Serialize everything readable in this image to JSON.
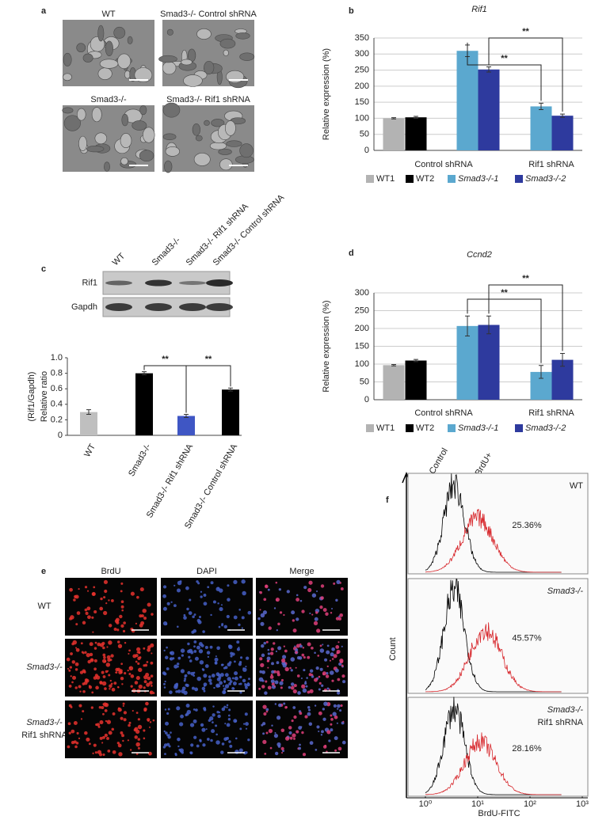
{
  "panel_letters": [
    "a",
    "b",
    "c",
    "d",
    "e",
    "f"
  ],
  "micrographs": {
    "labels": [
      "WT",
      "Smad3-/- Control shRNA",
      "Smad3-/-",
      "Smad3-/- Rif1 shRNA"
    ]
  },
  "chart_data": [
    {
      "type": "bar",
      "title": "Rif1",
      "ylabel": "Relative expression (%)",
      "categories": [
        "Control shRNA",
        "Rif1 shRNA"
      ],
      "series": [
        {
          "name": "WT1",
          "color": "#b3b3b3",
          "values": [
            100,
            null
          ],
          "errors": [
            2,
            null
          ]
        },
        {
          "name": "WT2",
          "color": "#000000",
          "values": [
            103,
            null
          ],
          "errors": [
            3,
            null
          ]
        },
        {
          "name": "Smad3-/-1",
          "color": "#5ba8cf",
          "values": [
            310,
            137
          ],
          "errors": [
            18,
            10
          ]
        },
        {
          "name": "Smad3-/-2",
          "color": "#2e3a9e",
          "values": [
            252,
            108
          ],
          "errors": [
            8,
            5
          ]
        }
      ],
      "ylim": [
        0,
        350
      ],
      "yticks": [
        0,
        50,
        100,
        150,
        200,
        250,
        300,
        350
      ],
      "grid": true,
      "annotations": [
        "**",
        "**"
      ]
    },
    {
      "type": "bar",
      "ylabel": [
        "(Rif1/Gapdh)",
        "Relative ratio"
      ],
      "categories": [
        "WT",
        "Smad3-/-",
        "Smad3-/- Rif1 shRNA",
        "Smad3-/- Control shRNA"
      ],
      "values": [
        0.3,
        0.8,
        0.25,
        0.59
      ],
      "errors": [
        0.03,
        0.02,
        0.02,
        0.02
      ],
      "colors": [
        "#bfbfbf",
        "#000000",
        "#3f56c4",
        "#000000"
      ],
      "ylim": [
        0,
        1
      ],
      "yticks": [
        0,
        0.2,
        0.4,
        0.6,
        0.8,
        {
          "value": 1,
          "label": "1.0"
        }
      ],
      "grid": false,
      "annotations": [
        "**",
        "**"
      ]
    },
    {
      "type": "bar",
      "title": "Ccnd2",
      "ylabel": "Relative expression (%)",
      "categories": [
        "Control shRNA",
        "Rif1 shRNA"
      ],
      "series": [
        {
          "name": "WT1",
          "color": "#b3b3b3",
          "values": [
            97,
            null
          ],
          "errors": [
            2,
            null
          ]
        },
        {
          "name": "WT2",
          "color": "#000000",
          "values": [
            110,
            null
          ],
          "errors": [
            3,
            null
          ]
        },
        {
          "name": "Smad3-/-1",
          "color": "#5ba8cf",
          "values": [
            207,
            78
          ],
          "errors": [
            28,
            18
          ]
        },
        {
          "name": "Smad3-/-2",
          "color": "#2e3a9e",
          "values": [
            210,
            112
          ],
          "errors": [
            25,
            18
          ]
        }
      ],
      "ylim": [
        0,
        300
      ],
      "yticks": [
        0,
        50,
        100,
        150,
        200,
        250,
        300
      ],
      "grid": true,
      "annotations": [
        "**",
        "**"
      ]
    }
  ],
  "blot": {
    "rows": [
      "Rif1",
      "Gapdh"
    ]
  },
  "brdu_images": {
    "columns": [
      "BrdU",
      "DAPI",
      "Merge"
    ],
    "rows": [
      [
        "WT"
      ],
      [
        "Smad3-/-"
      ],
      [
        "Smad3-/-",
        "Rif1 shRNA"
      ]
    ]
  },
  "flow": {
    "xlabel": "BrdU-FITC",
    "ylabel": "Count",
    "xscale": "log",
    "xlim": [
      1,
      1000
    ],
    "xticks": [
      {
        "value": 1,
        "label": "10⁰"
      },
      {
        "value": 10,
        "label": "10¹"
      },
      {
        "value": 100,
        "label": "10²"
      },
      {
        "value": 1000,
        "label": "10³"
      }
    ],
    "legend": [
      {
        "name": "Control",
        "color": "#000000"
      },
      {
        "name": "BrdU+",
        "color": "#d7262b"
      }
    ],
    "panels": [
      {
        "label": [
          "WT"
        ],
        "percent": "25.36%"
      },
      {
        "label": [
          "Smad3-/-"
        ],
        "percent": "45.57%"
      },
      {
        "label": [
          "Smad3-/-",
          "Rif1 shRNA"
        ],
        "percent": "28.16%"
      }
    ]
  }
}
